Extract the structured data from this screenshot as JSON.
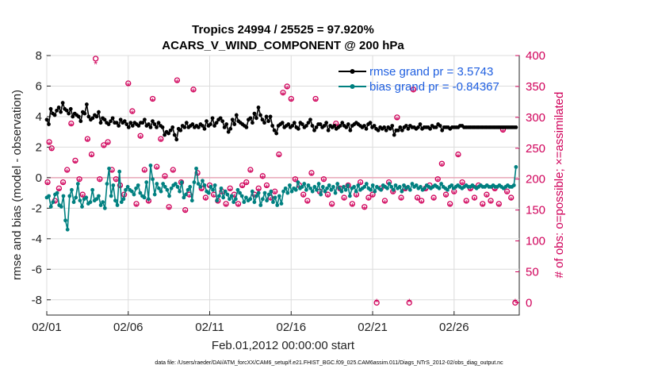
{
  "chart_data": {
    "type": "line",
    "title": "Tropics 24994 / 25525 = 97.920%",
    "subtitle": "ACARS_V_WIND_COMPONENT @ 200 hPa",
    "xlabel": "Feb.01,2012 00:00:00 start",
    "ylabel": "rmse and bias (model - observation)",
    "ylabel_right": "# of obs: o=possible; ×=assimilated",
    "footer": "data file: /Users/raeder/DAI/ATM_forcXX/CAM6_setup/f.e21.FHIST_BGC.f09_025.CAM6assim.011/Diags_NTrS_2012-02/obs_diag_output.nc",
    "x_tick_labels": [
      "02/01",
      "02/06",
      "02/11",
      "02/16",
      "02/21",
      "02/26"
    ],
    "x_tick_days": [
      0,
      5,
      10,
      15,
      20,
      25
    ],
    "xlim_days": [
      0,
      29
    ],
    "ylim": [
      -9,
      8
    ],
    "y_ticks": [
      8,
      6,
      4,
      2,
      0,
      -2,
      -4,
      -6,
      -8
    ],
    "y2lim": [
      -20,
      400
    ],
    "y2_ticks": [
      400,
      350,
      300,
      250,
      200,
      150,
      100,
      50,
      0
    ],
    "colors": {
      "rmse": "#000000",
      "bias": "#008080",
      "obs": "#d0005a",
      "zero": "#e8a8b8",
      "legend": "#1f5fe0"
    },
    "legend": {
      "position": "top-right",
      "entries": [
        "rmse grand pr = 3.5743",
        "bias grand pr = -0.84367"
      ]
    },
    "series": [
      {
        "name": "rmse",
        "values": [
          3.8,
          3.5,
          4.5,
          4.2,
          4.1,
          4.4,
          4.6,
          4.3,
          4.9,
          4.5,
          4.4,
          4.2,
          4.5,
          4.0,
          4.2,
          4.1,
          4.0,
          3.7,
          4.3,
          4.2,
          4.8,
          4.0,
          3.8,
          3.9,
          4.1,
          4.0,
          4.3,
          3.6,
          3.9,
          3.8,
          3.6,
          3.5,
          3.7,
          3.9,
          3.6,
          3.6,
          3.4,
          3.8,
          3.6,
          3.7,
          3.5,
          3.3,
          3.6,
          3.4,
          3.6,
          3.5,
          3.4,
          3.6,
          3.6,
          3.8,
          3.4,
          3.5,
          3.3,
          3.7,
          3.5,
          3.3,
          3.6,
          3.4,
          3.3,
          2.8,
          3.0,
          2.9,
          3.1,
          3.3,
          2.8,
          2.5,
          3.2,
          3.1,
          3.4,
          3.3,
          3.6,
          3.3,
          3.4,
          3.5,
          3.3,
          3.4,
          3.3,
          3.5,
          3.4,
          3.2,
          3.7,
          3.4,
          3.5,
          3.9,
          3.4,
          3.6,
          3.8,
          3.9,
          3.7,
          3.3,
          3.5,
          3.0,
          3.2,
          3.8,
          3.5,
          4.1,
          3.7,
          3.6,
          3.5,
          3.4,
          3.3,
          3.8,
          3.9,
          3.6,
          4.2,
          3.9,
          4.6,
          4.1,
          3.8,
          3.6,
          4.0,
          3.7,
          4.0,
          3.4,
          3.1,
          2.9,
          3.4,
          3.5,
          3.6,
          3.3,
          3.4,
          3.5,
          3.3,
          3.4,
          3.6,
          3.3,
          3.2,
          3.6,
          3.5,
          3.3,
          3.4,
          3.6,
          3.8,
          3.4,
          3.1,
          3.3,
          3.5,
          3.5,
          3.3,
          3.4,
          3.6,
          3.1,
          3.4,
          3.3,
          3.4,
          3.2,
          3.3,
          3.4,
          3.6,
          3.4,
          3.3,
          3.5,
          3.1,
          3.4,
          3.5,
          3.6,
          3.5,
          3.4,
          3.3,
          3.4,
          3.2,
          3.5,
          3.6,
          3.3,
          3.4,
          3.2,
          3.1,
          3.3,
          3.2,
          3.3,
          3.1,
          3.3,
          3.2,
          3.4,
          2.8,
          3.1,
          3.1,
          3.3,
          3.1,
          3.3,
          3.4,
          3.2,
          3.4,
          3.3,
          3.3,
          3.2,
          3.3,
          3.5,
          3.2,
          3.3,
          3.3,
          3.3,
          3.2,
          3.4,
          3.3,
          3.3,
          3.5,
          3.4,
          3.1,
          3.3,
          3.3,
          3.3,
          3.2,
          3.3,
          3.3,
          3.3,
          3.3,
          3.4,
          3.4,
          3.3,
          3.3,
          3.3,
          3.3,
          3.3,
          3.3,
          3.3,
          3.3,
          3.3,
          3.3,
          3.3,
          3.3,
          3.3,
          3.3,
          3.3,
          3.3,
          3.3,
          3.3,
          3.3,
          3.3,
          3.3,
          3.3,
          3.3,
          3.3,
          3.3,
          3.3,
          3.3
        ]
      },
      {
        "name": "bias",
        "values": [
          -1.3,
          -1.2,
          -1.9,
          -1.6,
          -1.1,
          -1.0,
          -1.8,
          -1.9,
          -1.2,
          -2.8,
          -3.4,
          -1.2,
          -0.8,
          -1.6,
          -1.3,
          -0.4,
          -1.5,
          -1.9,
          -1.4,
          -1.3,
          -1.7,
          -1.6,
          -0.8,
          -1.5,
          -1.4,
          -1.2,
          -1.8,
          -1.6,
          -2.0,
          -0.4,
          0.6,
          -1.2,
          -0.5,
          -1.5,
          -1.8,
          0.4,
          -1.6,
          -1.4,
          -0.8,
          -0.6,
          -0.8,
          -0.9,
          -1.1,
          -0.7,
          -0.5,
          -1.0,
          -1.2,
          -1.3,
          -0.3,
          -1.4,
          0.8,
          -0.1,
          -1.1,
          -0.4,
          -0.7,
          -0.9,
          -0.4,
          -0.6,
          -0.8,
          -1.2,
          -0.7,
          -0.5,
          -0.4,
          -0.6,
          -0.9,
          -0.3,
          -1.3,
          -1.1,
          -0.8,
          -0.6,
          -1.5,
          -0.3,
          0.6,
          -0.4,
          -0.6,
          -0.2,
          -0.5,
          -0.9,
          -1.0,
          -0.6,
          -0.8,
          -0.5,
          -1.5,
          -1.2,
          -0.7,
          -1.3,
          -0.9,
          -1.1,
          -1.4,
          -1.2,
          -1.6,
          -1.4,
          -0.8,
          -1.0,
          -1.2,
          -1.6,
          -1.3,
          -1.5,
          -1.4,
          -0.9,
          -1.6,
          -1.2,
          -1.0,
          -1.8,
          -1.4,
          -1.0,
          -1.5,
          -1.1,
          -0.9,
          -1.6,
          -1.3,
          -1.8,
          -1.2,
          -1.7,
          -0.9,
          -0.7,
          -1.0,
          -0.5,
          -0.9,
          -0.7,
          -0.8,
          -0.3,
          -0.7,
          -0.6,
          -0.4,
          -0.8,
          -0.5,
          -0.7,
          -0.9,
          -0.6,
          -0.8,
          -0.4,
          -1.1,
          -0.6,
          -0.9,
          -0.7,
          -0.5,
          -0.8,
          -0.6,
          -1.0,
          -0.4,
          -0.7,
          -0.9,
          -0.6,
          -0.8,
          -0.5,
          -1.2,
          -0.7,
          -0.6,
          -0.9,
          -0.5,
          -0.8,
          -0.7,
          -0.6,
          -0.4,
          -0.7,
          -0.8,
          -0.5,
          -0.9,
          -0.6,
          -0.7,
          -0.8,
          -0.5,
          -0.6,
          -0.7,
          -0.4,
          -0.6,
          -0.8,
          -0.5,
          -0.7,
          -0.6,
          -0.9,
          -0.5,
          -0.7,
          -0.6,
          -0.8,
          -0.4,
          -0.6,
          -0.5,
          -0.7,
          -0.6,
          -0.8,
          -0.7,
          -0.5,
          -0.6,
          -0.7,
          -0.6,
          -0.5,
          -0.6,
          -0.7,
          -0.4,
          -0.6,
          -0.7,
          -0.8,
          -0.6,
          -0.5,
          -0.7,
          -0.6,
          -0.5,
          -0.6,
          -0.7,
          -0.6,
          -0.5,
          -0.6,
          -0.6,
          -0.5,
          -0.6,
          -0.7,
          -0.6,
          -0.5,
          -0.6,
          -0.6,
          -0.5,
          -0.6,
          -0.6,
          -0.5,
          -0.6,
          -0.6,
          -0.5,
          -0.6,
          -0.7,
          -0.6,
          -0.5,
          -0.6,
          -0.6,
          -0.5,
          0.7
        ]
      }
    ],
    "obs_possible": [
      [
        0.05,
        195
      ],
      [
        0.15,
        260
      ],
      [
        0.3,
        250
      ],
      [
        0.5,
        165
      ],
      [
        0.75,
        185
      ],
      [
        1,
        195
      ],
      [
        1.25,
        215
      ],
      [
        1.5,
        290
      ],
      [
        1.75,
        230
      ],
      [
        2,
        200
      ],
      [
        2.2,
        175
      ],
      [
        2.5,
        265
      ],
      [
        2.75,
        240
      ],
      [
        3,
        395
      ],
      [
        3.25,
        200
      ],
      [
        3.5,
        255
      ],
      [
        3.75,
        260
      ],
      [
        4,
        215
      ],
      [
        4.25,
        200
      ],
      [
        4.5,
        190
      ],
      [
        4.75,
        175
      ],
      [
        5,
        355
      ],
      [
        5.25,
        310
      ],
      [
        5.5,
        160
      ],
      [
        5.75,
        270
      ],
      [
        6,
        215
      ],
      [
        6.25,
        165
      ],
      [
        6.5,
        330
      ],
      [
        6.75,
        220
      ],
      [
        7,
        265
      ],
      [
        7.25,
        205
      ],
      [
        7.5,
        155
      ],
      [
        7.75,
        215
      ],
      [
        8,
        360
      ],
      [
        8.25,
        195
      ],
      [
        8.5,
        150
      ],
      [
        8.75,
        175
      ],
      [
        9,
        345
      ],
      [
        9.25,
        210
      ],
      [
        9.5,
        185
      ],
      [
        9.75,
        170
      ],
      [
        10,
        190
      ],
      [
        10.25,
        175
      ],
      [
        10.5,
        165
      ],
      [
        10.75,
        180
      ],
      [
        11,
        160
      ],
      [
        11.25,
        185
      ],
      [
        11.5,
        175
      ],
      [
        11.75,
        160
      ],
      [
        12,
        190
      ],
      [
        12.25,
        195
      ],
      [
        12.5,
        215
      ],
      [
        12.75,
        175
      ],
      [
        13,
        185
      ],
      [
        13.25,
        205
      ],
      [
        13.5,
        190
      ],
      [
        13.75,
        170
      ],
      [
        14,
        180
      ],
      [
        14.25,
        240
      ],
      [
        14.5,
        340
      ],
      [
        14.75,
        350
      ],
      [
        15,
        330
      ],
      [
        15.25,
        200
      ],
      [
        15.5,
        190
      ],
      [
        15.75,
        175
      ],
      [
        16,
        165
      ],
      [
        16.25,
        210
      ],
      [
        16.5,
        330
      ],
      [
        16.75,
        180
      ],
      [
        17,
        200
      ],
      [
        17.25,
        175
      ],
      [
        17.5,
        160
      ],
      [
        17.75,
        290
      ],
      [
        18,
        185
      ],
      [
        18.25,
        170
      ],
      [
        18.5,
        190
      ],
      [
        18.75,
        160
      ],
      [
        19,
        175
      ],
      [
        19.25,
        195
      ],
      [
        19.5,
        155
      ],
      [
        19.75,
        170
      ],
      [
        20,
        175
      ],
      [
        20.25,
        0
      ],
      [
        20.5,
        185
      ],
      [
        20.75,
        165
      ],
      [
        21,
        195
      ],
      [
        21.25,
        180
      ],
      [
        21.5,
        300
      ],
      [
        21.75,
        170
      ],
      [
        22,
        185
      ],
      [
        22.25,
        0
      ],
      [
        22.5,
        345
      ],
      [
        22.75,
        170
      ],
      [
        23,
        165
      ],
      [
        23.25,
        185
      ],
      [
        23.5,
        190
      ],
      [
        23.75,
        170
      ],
      [
        24,
        200
      ],
      [
        24.25,
        225
      ],
      [
        24.5,
        175
      ],
      [
        24.75,
        160
      ],
      [
        25,
        180
      ],
      [
        25.25,
        240
      ],
      [
        25.5,
        195
      ],
      [
        25.75,
        165
      ],
      [
        26,
        185
      ],
      [
        26.25,
        170
      ],
      [
        26.5,
        190
      ],
      [
        26.75,
        160
      ],
      [
        27,
        175
      ],
      [
        27.25,
        165
      ],
      [
        27.5,
        185
      ],
      [
        27.75,
        160
      ],
      [
        28,
        280
      ],
      [
        28.25,
        180
      ],
      [
        28.5,
        170
      ],
      [
        28.75,
        0
      ]
    ],
    "obs_assimilated": [
      [
        0.05,
        190
      ],
      [
        0.15,
        255
      ],
      [
        0.3,
        245
      ],
      [
        0.5,
        160
      ],
      [
        0.75,
        180
      ],
      [
        1,
        190
      ],
      [
        1.25,
        210
      ],
      [
        1.5,
        285
      ],
      [
        1.75,
        225
      ],
      [
        2,
        195
      ],
      [
        2.2,
        170
      ],
      [
        2.5,
        260
      ],
      [
        2.75,
        235
      ],
      [
        3,
        385
      ],
      [
        3.25,
        195
      ],
      [
        3.5,
        250
      ],
      [
        3.75,
        255
      ],
      [
        4,
        210
      ],
      [
        4.25,
        195
      ],
      [
        4.5,
        185
      ],
      [
        4.75,
        170
      ],
      [
        5,
        350
      ],
      [
        5.25,
        305
      ],
      [
        5.5,
        155
      ],
      [
        5.75,
        265
      ],
      [
        6,
        210
      ],
      [
        6.25,
        160
      ],
      [
        6.5,
        325
      ],
      [
        6.75,
        215
      ],
      [
        7,
        260
      ],
      [
        7.25,
        200
      ],
      [
        7.5,
        150
      ],
      [
        7.75,
        210
      ],
      [
        8,
        355
      ],
      [
        8.25,
        190
      ],
      [
        8.5,
        145
      ],
      [
        8.75,
        170
      ],
      [
        9,
        340
      ],
      [
        9.25,
        205
      ],
      [
        9.5,
        180
      ],
      [
        9.75,
        165
      ],
      [
        10,
        185
      ],
      [
        10.25,
        170
      ],
      [
        10.5,
        160
      ],
      [
        10.75,
        175
      ],
      [
        11,
        155
      ],
      [
        11.25,
        180
      ],
      [
        11.5,
        170
      ],
      [
        11.75,
        155
      ],
      [
        12,
        185
      ],
      [
        12.25,
        190
      ],
      [
        12.5,
        210
      ],
      [
        12.75,
        170
      ],
      [
        13,
        180
      ],
      [
        13.25,
        200
      ],
      [
        13.5,
        185
      ],
      [
        13.75,
        165
      ],
      [
        14,
        175
      ],
      [
        14.25,
        235
      ],
      [
        14.5,
        335
      ],
      [
        14.75,
        345
      ],
      [
        15,
        325
      ],
      [
        15.25,
        195
      ],
      [
        15.5,
        185
      ],
      [
        15.75,
        170
      ],
      [
        16,
        160
      ],
      [
        16.25,
        205
      ],
      [
        16.5,
        325
      ],
      [
        16.75,
        175
      ],
      [
        17,
        195
      ],
      [
        17.25,
        170
      ],
      [
        17.5,
        155
      ],
      [
        17.75,
        285
      ],
      [
        18,
        180
      ],
      [
        18.25,
        165
      ],
      [
        18.5,
        185
      ],
      [
        18.75,
        155
      ],
      [
        19,
        170
      ],
      [
        19.25,
        190
      ],
      [
        19.5,
        150
      ],
      [
        19.75,
        165
      ],
      [
        20,
        170
      ],
      [
        20.25,
        0
      ],
      [
        20.5,
        180
      ],
      [
        20.75,
        160
      ],
      [
        21,
        190
      ],
      [
        21.25,
        175
      ],
      [
        21.5,
        295
      ],
      [
        21.75,
        165
      ],
      [
        22,
        180
      ],
      [
        22.25,
        0
      ],
      [
        22.5,
        340
      ],
      [
        22.75,
        165
      ],
      [
        23,
        160
      ],
      [
        23.25,
        180
      ],
      [
        23.5,
        185
      ],
      [
        23.75,
        165
      ],
      [
        24,
        195
      ],
      [
        24.25,
        220
      ],
      [
        24.5,
        170
      ],
      [
        24.75,
        155
      ],
      [
        25,
        175
      ],
      [
        25.25,
        235
      ],
      [
        25.5,
        190
      ],
      [
        25.75,
        160
      ],
      [
        26,
        180
      ],
      [
        26.25,
        165
      ],
      [
        26.5,
        185
      ],
      [
        26.75,
        155
      ],
      [
        27,
        170
      ],
      [
        27.25,
        160
      ],
      [
        27.5,
        180
      ],
      [
        27.75,
        155
      ],
      [
        28,
        275
      ],
      [
        28.25,
        175
      ],
      [
        28.5,
        165
      ],
      [
        28.75,
        0
      ]
    ]
  }
}
